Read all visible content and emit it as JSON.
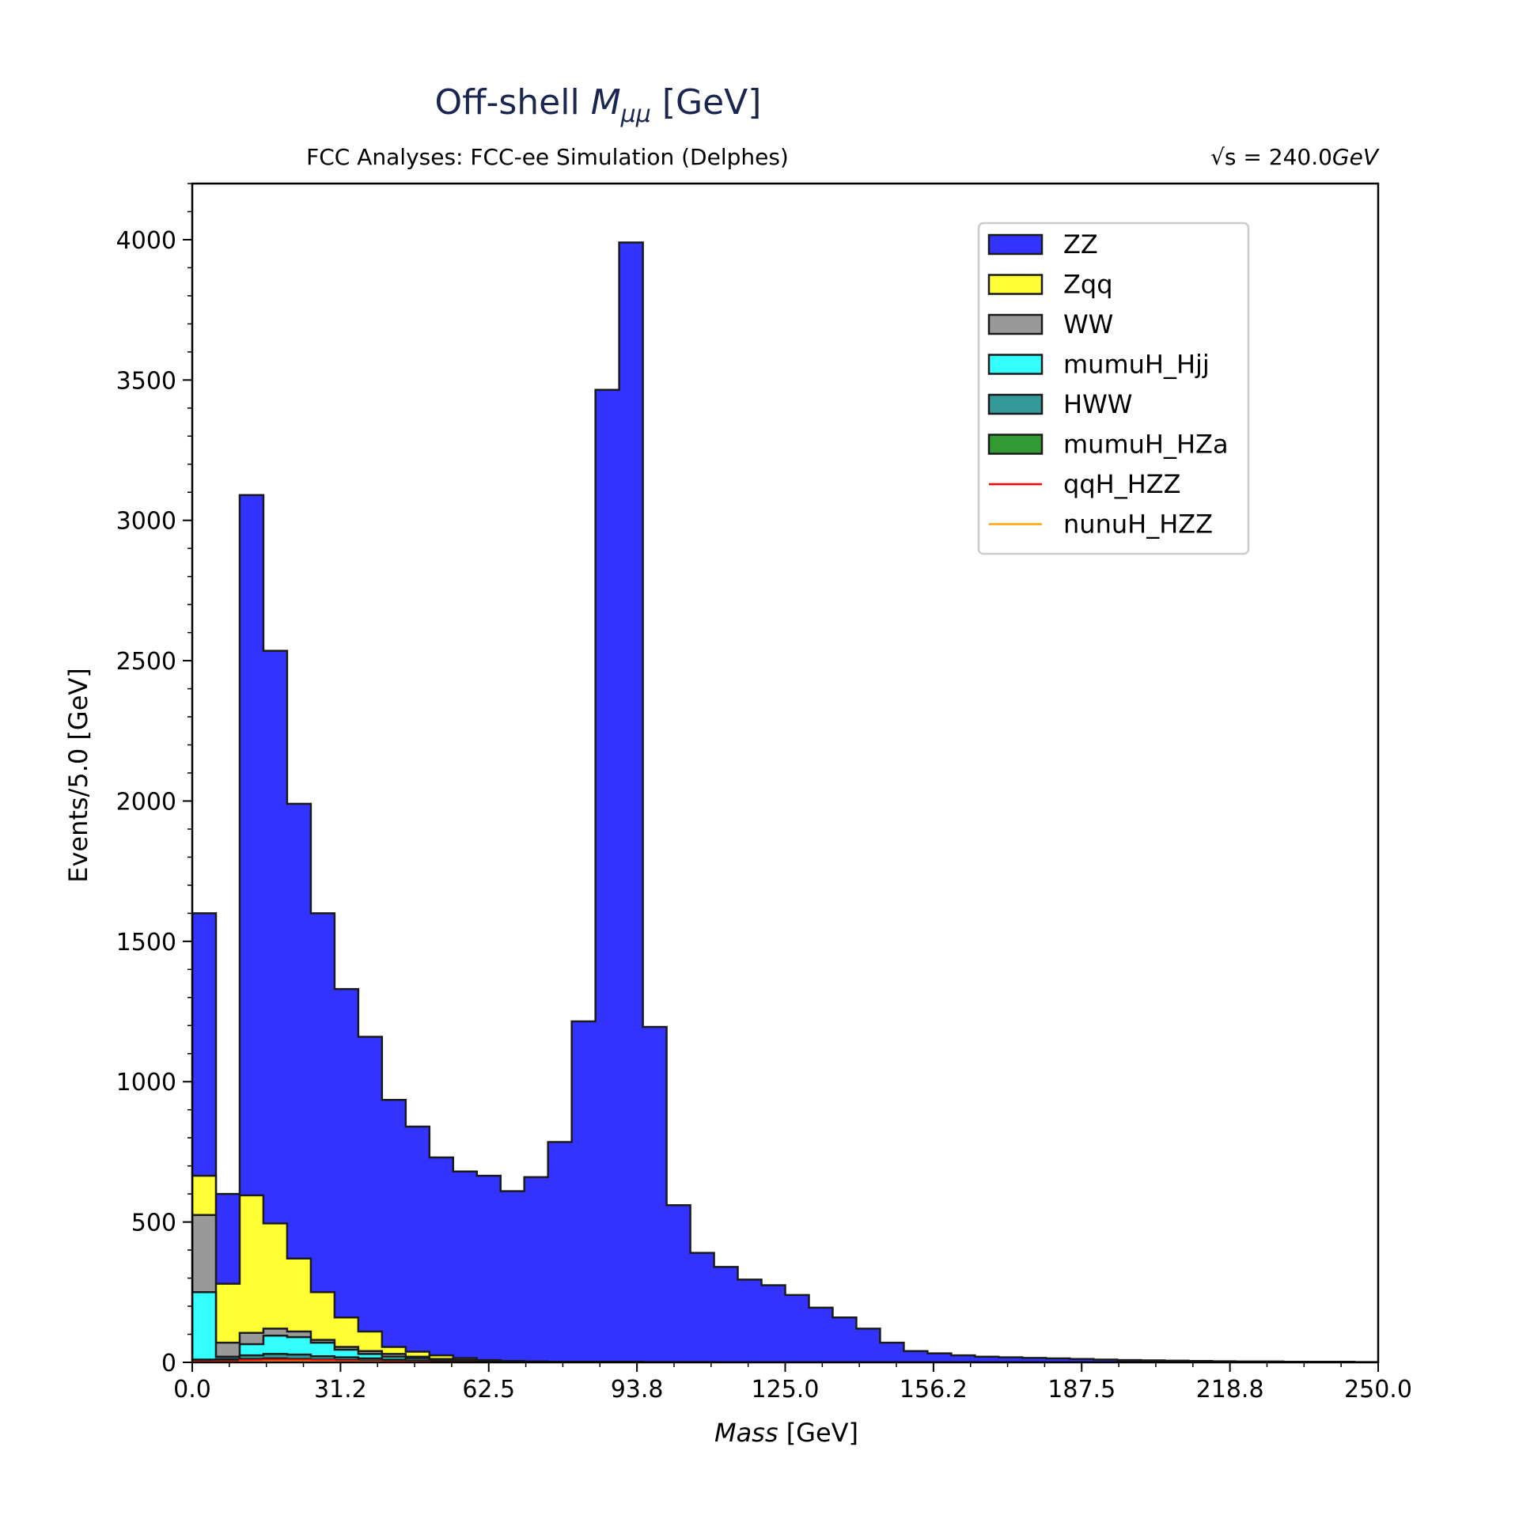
{
  "chart_data": {
    "type": "bar",
    "stacked": true,
    "histogram": true,
    "title_main": "Off-shell ",
    "title_symbol": "M",
    "title_subscript": "μμ",
    "title_unit": " [GeV]",
    "subtitle_left": "FCC Analyses: FCC-ee Simulation (Delphes)",
    "subtitle_right_prefix": "√s = 240.0",
    "subtitle_right_unit": "GeV",
    "xlabel_italic": "Mass",
    "xlabel_unit": " [GeV]",
    "ylabel": "Events/5.0 [GeV]",
    "xlim": [
      0,
      250
    ],
    "ylim": [
      0,
      4200
    ],
    "bin_width": 5,
    "xticks": [
      "0.0",
      "31.2",
      "62.5",
      "93.8",
      "125.0",
      "156.2",
      "187.5",
      "218.8",
      "250.0"
    ],
    "yticks": [
      "0",
      "500",
      "1000",
      "1500",
      "2000",
      "2500",
      "3000",
      "3500",
      "4000"
    ],
    "legend_position": "top-right",
    "colors": {
      "ZZ": "#3333ff",
      "Zqq": "#ffff33",
      "WW": "#999999",
      "mumuH_Hjj": "#33ffff",
      "HWW": "#339999",
      "mumuH_HZa": "#339933",
      "qqH_HZZ": "#ff0000",
      "nunuH_HZZ": "#ffa500"
    },
    "series": [
      {
        "name": "ZZ",
        "legend_type": "patch",
        "cumulative": [
          1600,
          600,
          3090,
          2535,
          1990,
          1600,
          1330,
          1160,
          935,
          840,
          730,
          680,
          665,
          610,
          660,
          785,
          1215,
          3465,
          3990,
          1195,
          560,
          390,
          340,
          295,
          275,
          240,
          195,
          160,
          120,
          70,
          40,
          32,
          25,
          20,
          18,
          16,
          14,
          12,
          10,
          8,
          7,
          6,
          5,
          4,
          3,
          3,
          2,
          2,
          2,
          1
        ]
      },
      {
        "name": "Zqq",
        "legend_type": "patch",
        "cumulative": [
          665,
          280,
          595,
          495,
          370,
          250,
          160,
          110,
          55,
          38,
          25,
          15,
          8,
          5,
          3,
          2,
          2,
          2,
          2,
          1,
          1,
          1,
          0,
          0,
          0,
          0,
          0,
          0,
          0,
          0,
          0,
          0,
          0,
          0,
          0,
          0,
          0,
          0,
          0,
          0,
          0,
          0,
          0,
          0,
          0,
          0,
          0,
          0,
          0,
          0
        ]
      },
      {
        "name": "WW",
        "legend_type": "patch",
        "cumulative": [
          525,
          70,
          105,
          120,
          110,
          80,
          55,
          40,
          30,
          20,
          12,
          8,
          4,
          2,
          1,
          1,
          1,
          1,
          1,
          0,
          0,
          0,
          0,
          0,
          0,
          0,
          0,
          0,
          0,
          0,
          0,
          0,
          0,
          0,
          0,
          0,
          0,
          0,
          0,
          0,
          0,
          0,
          0,
          0,
          0,
          0,
          0,
          0,
          0,
          0
        ]
      },
      {
        "name": "mumuH_Hjj",
        "legend_type": "patch",
        "cumulative": [
          250,
          20,
          65,
          95,
          90,
          70,
          45,
          30,
          20,
          15,
          8,
          5,
          3,
          2,
          1,
          1,
          1,
          1,
          1,
          0,
          0,
          0,
          0,
          0,
          0,
          0,
          0,
          0,
          0,
          0,
          0,
          0,
          0,
          0,
          0,
          0,
          0,
          0,
          0,
          0,
          0,
          0,
          0,
          0,
          0,
          0,
          0,
          0,
          0,
          0
        ]
      },
      {
        "name": "HWW",
        "legend_type": "patch",
        "cumulative": [
          10,
          12,
          25,
          30,
          28,
          22,
          18,
          14,
          10,
          7,
          4,
          3,
          2,
          1,
          1,
          0,
          0,
          0,
          0,
          0,
          0,
          0,
          0,
          0,
          0,
          0,
          0,
          0,
          0,
          0,
          0,
          0,
          0,
          0,
          0,
          0,
          0,
          0,
          0,
          0,
          0,
          0,
          0,
          0,
          0,
          0,
          0,
          0,
          0,
          0
        ]
      },
      {
        "name": "mumuH_HZa",
        "legend_type": "patch",
        "cumulative": [
          5,
          6,
          12,
          14,
          12,
          10,
          8,
          6,
          4,
          3,
          2,
          1,
          1,
          0,
          0,
          0,
          0,
          0,
          0,
          0,
          0,
          0,
          0,
          0,
          0,
          0,
          0,
          0,
          0,
          0,
          0,
          0,
          0,
          0,
          0,
          0,
          0,
          0,
          0,
          0,
          0,
          0,
          0,
          0,
          0,
          0,
          0,
          0,
          0,
          0
        ]
      },
      {
        "name": "qqH_HZZ",
        "legend_type": "line",
        "cumulative": [
          3,
          4,
          8,
          10,
          9,
          8,
          6,
          4,
          3,
          2,
          1,
          1,
          0,
          0,
          0,
          0,
          0,
          0,
          0,
          0,
          0,
          0,
          0,
          0,
          0,
          0,
          0,
          0,
          0,
          0,
          0,
          0,
          0,
          0,
          0,
          0,
          0,
          0,
          0,
          0,
          0,
          0,
          0,
          0,
          0,
          0,
          0,
          0,
          0,
          0
        ]
      },
      {
        "name": "nunuH_HZZ",
        "legend_type": "line",
        "cumulative": [
          1,
          1,
          3,
          4,
          4,
          3,
          2,
          2,
          1,
          1,
          0,
          0,
          0,
          0,
          0,
          0,
          0,
          0,
          0,
          0,
          0,
          0,
          0,
          0,
          0,
          0,
          0,
          0,
          0,
          0,
          0,
          0,
          0,
          0,
          0,
          0,
          0,
          0,
          0,
          0,
          0,
          0,
          0,
          0,
          0,
          0,
          0,
          0,
          0,
          0
        ]
      }
    ]
  }
}
